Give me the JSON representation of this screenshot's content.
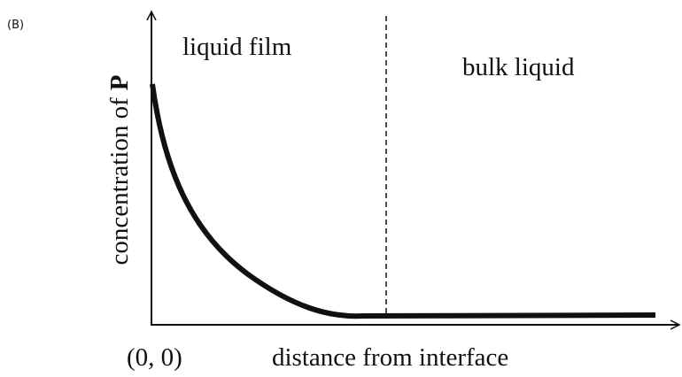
{
  "panel_label": "(B)",
  "regions": [
    "liquid film",
    "bulk liquid"
  ],
  "y_axis_label": {
    "text": "concentration of",
    "emphasis": "P"
  },
  "origin_label": "(0, 0)",
  "x_axis_label": "distance from interface"
}
